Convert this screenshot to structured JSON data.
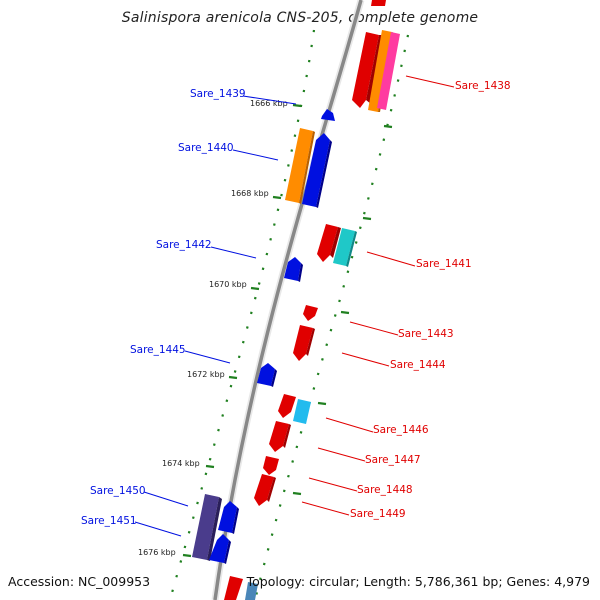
{
  "title": "Salinispora arenicola CNS-205, complete genome",
  "footer": {
    "accession": "Accession: NC_009953",
    "summary": "Topology: circular; Length: 5,786,361 bp; Genes: 4,979"
  },
  "colors": {
    "forward": "#e00000",
    "reverse": "#0010e0",
    "orange": "#ff8c00",
    "magenta": "#ff3ba0",
    "cyan": "#1fc8c8",
    "skyblue": "#22bbee",
    "purple": "#4a3c8c",
    "steelblue": "#4a86b8",
    "scale": "#208020",
    "backbone": "#888888"
  },
  "scale_labels": [
    "1666 kbp",
    "1668 kbp",
    "1670 kbp",
    "1672 kbp",
    "1674 kbp",
    "1676 kbp"
  ],
  "genes_left": [
    "Sare_1439",
    "Sare_1440",
    "Sare_1442",
    "Sare_1445",
    "Sare_1450",
    "Sare_1451"
  ],
  "genes_right": [
    "Sare_1438",
    "Sare_1441",
    "Sare_1443",
    "Sare_1444",
    "Sare_1446",
    "Sare_1447",
    "Sare_1448",
    "Sare_1449"
  ]
}
